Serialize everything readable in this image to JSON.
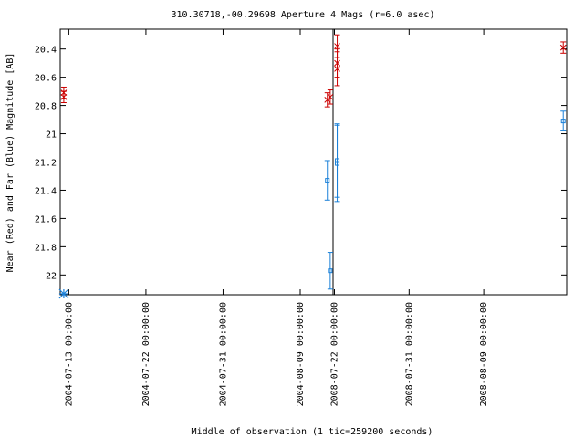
{
  "chart_data": {
    "type": "scatter",
    "title": "310.30718,-00.29698   Aperture 4 Mags (r=6.0 asec)",
    "xlabel": "Middle of observation (1 tic=259200 seconds)",
    "ylabel": "Near (Red) and Far (Blue) Magnitude [AB]",
    "y_inverted": true,
    "ylim": [
      20.26,
      22.14
    ],
    "yticks": [
      "20.4",
      "20.6",
      "20.8",
      "21",
      "21.2",
      "21.4",
      "21.6",
      "21.8",
      "22"
    ],
    "grid": false,
    "segments": [
      {
        "xlim": [
          "2004-07-12 00:00:00",
          "2004-08-12 20:00:00"
        ],
        "xticks": [
          "2004-07-13 00:00:00",
          "2004-07-22 00:00:00",
          "2004-07-31 00:00:00",
          "2004-08-09 00:00:00"
        ]
      },
      {
        "xlim": [
          "2008-07-21 20:00:00",
          "2008-08-19 00:00:00"
        ],
        "xticks": [
          "2008-07-22 00:00:00",
          "2008-07-31 00:00:00",
          "2008-08-09 00:00:00"
        ]
      }
    ],
    "series": [
      {
        "color": "#cc0000",
        "marker": "x",
        "points": [
          {
            "segment": 0,
            "x": "2004-07-12 10:00:00",
            "y": 20.71,
            "err": 0.04
          },
          {
            "segment": 0,
            "x": "2004-07-12 10:00:00",
            "y": 20.74,
            "err": 0.04
          },
          {
            "segment": 0,
            "x": "2004-08-12 04:00:00",
            "y": 20.76,
            "err": 0.05
          },
          {
            "segment": 0,
            "x": "2004-08-12 12:00:00",
            "y": 20.74,
            "err": 0.05
          },
          {
            "segment": 1,
            "x": "2008-07-22 08:00:00",
            "y": 20.38,
            "err": 0.08
          },
          {
            "segment": 1,
            "x": "2008-07-22 08:00:00",
            "y": 20.5,
            "err": 0.1
          },
          {
            "segment": 1,
            "x": "2008-07-22 08:00:00",
            "y": 20.54,
            "err": 0.12
          },
          {
            "segment": 1,
            "x": "2008-08-18 14:00:00",
            "y": 20.39,
            "err": 0.04
          }
        ]
      },
      {
        "color": "#1a80d8",
        "marker": "square",
        "points": [
          {
            "segment": 0,
            "x": "2004-08-12 04:00:00",
            "y": 21.33,
            "err": 0.14
          },
          {
            "segment": 0,
            "x": "2004-08-12 12:00:00",
            "y": 21.97,
            "err": 0.13
          },
          {
            "segment": 1,
            "x": "2008-07-22 08:00:00",
            "y": 21.19,
            "err": 0.26
          },
          {
            "segment": 1,
            "x": "2008-07-22 08:00:00",
            "y": 21.21,
            "err": 0.27
          },
          {
            "segment": 1,
            "x": "2008-08-18 14:00:00",
            "y": 20.91,
            "err": 0.07
          }
        ]
      },
      {
        "color": "#1a80d8",
        "marker": "asterisk",
        "note_points": [
          {
            "segment": 0,
            "x": "2004-07-12 10:00:00",
            "y": 22.14
          }
        ]
      }
    ]
  }
}
